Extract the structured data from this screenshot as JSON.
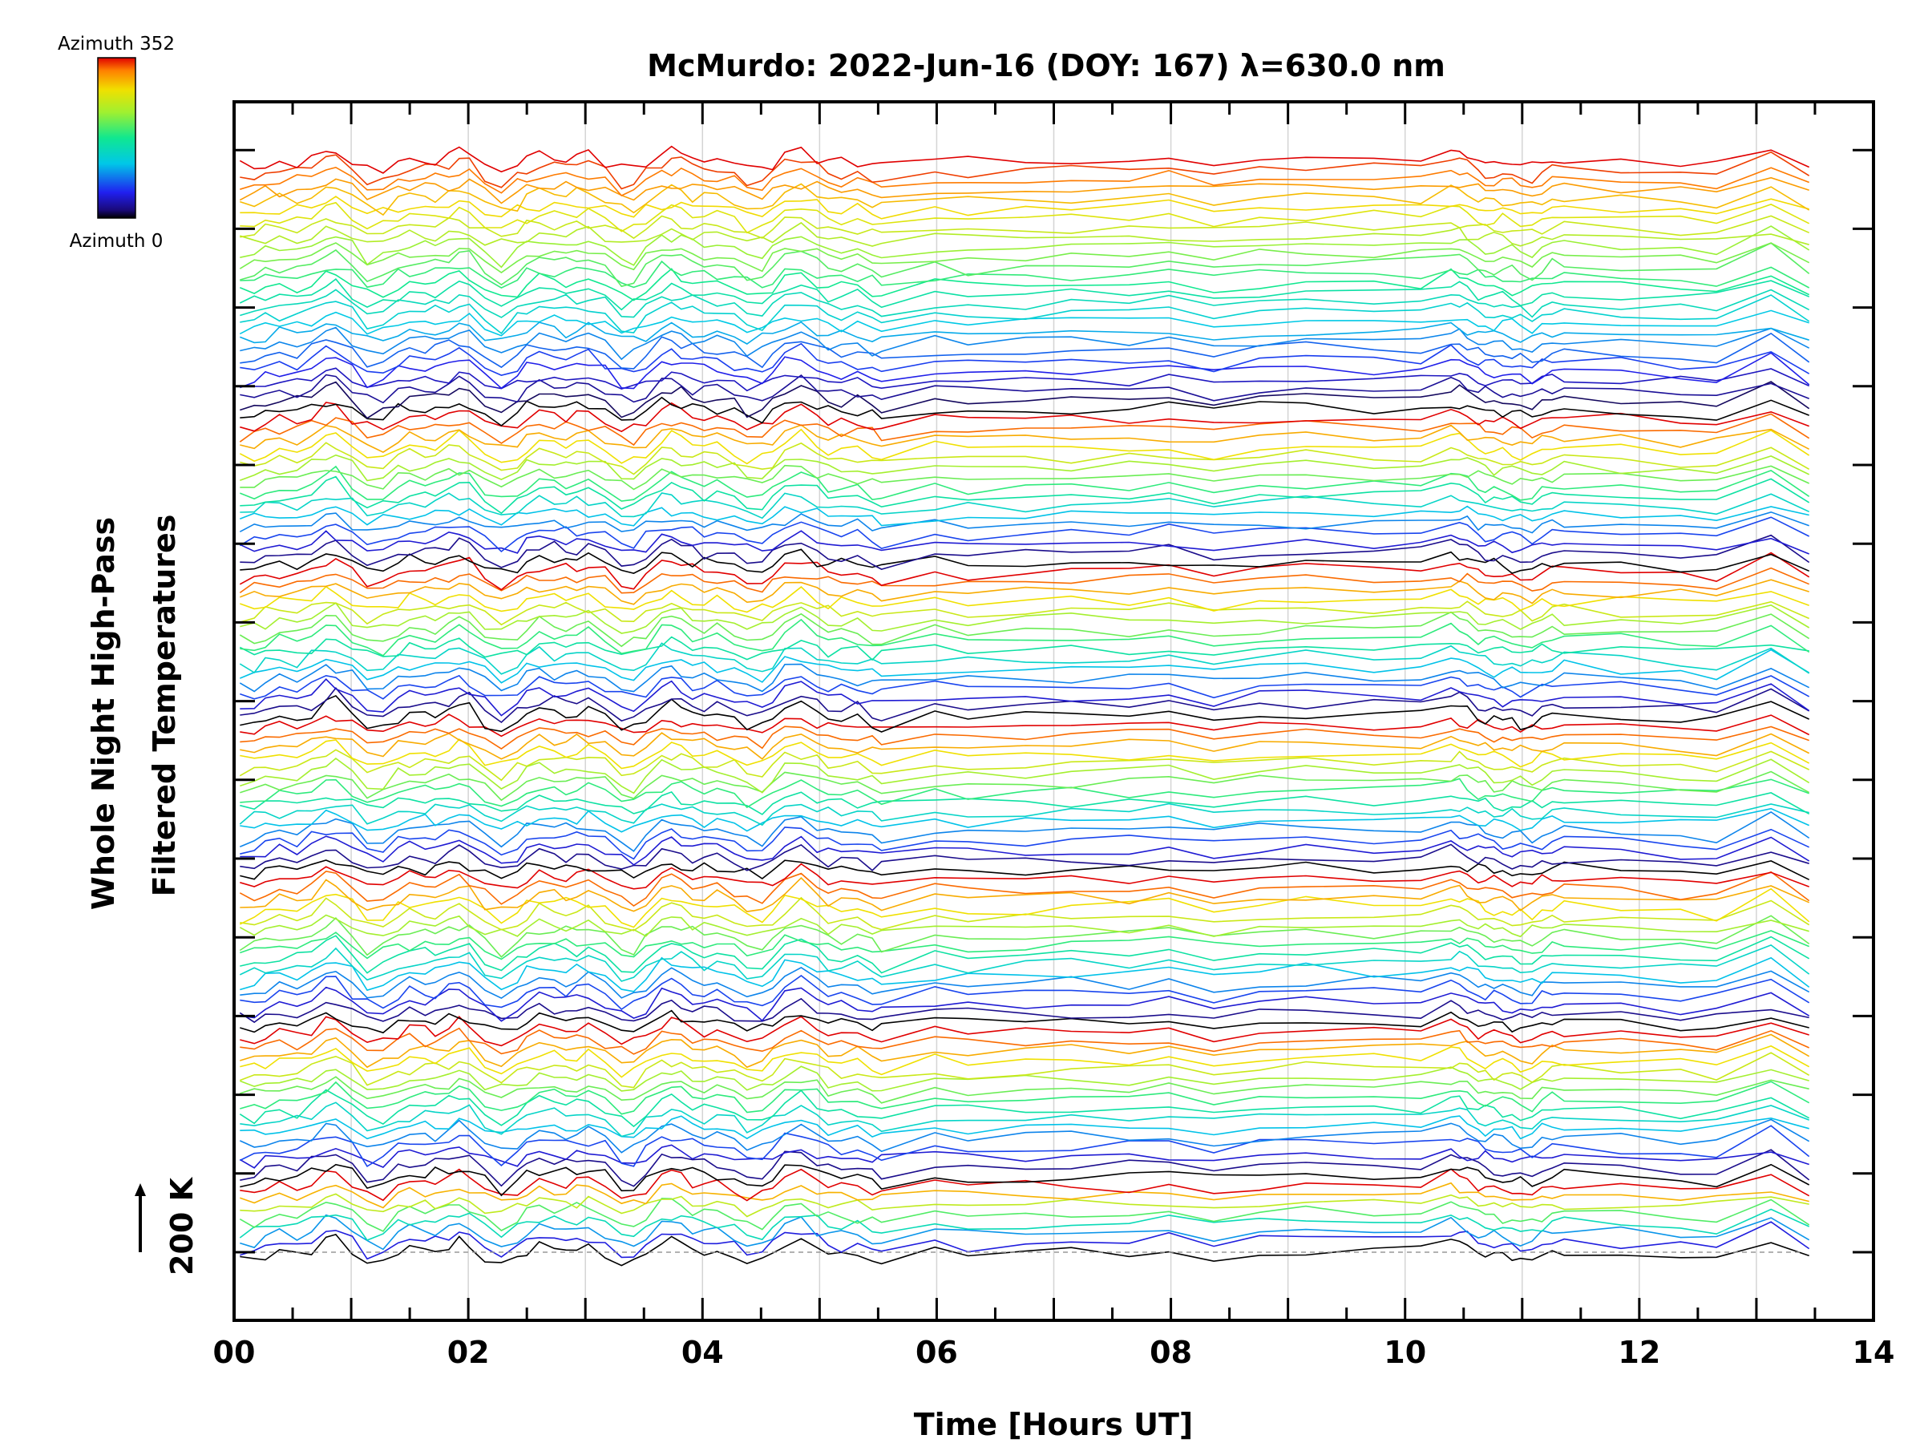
{
  "chart_data": {
    "type": "line",
    "title": "McMurdo: 2022-Jun-16 (DOY: 167) λ=630.0 nm",
    "xlabel": "Time [Hours UT]",
    "ylabel_line1": "Whole Night High-Pass",
    "ylabel_line2": "Filtered Temperatures",
    "xlim": [
      0,
      14
    ],
    "x_tick_labels": [
      "00",
      "02",
      "04",
      "06",
      "08",
      "10",
      "12",
      "14"
    ],
    "x_major_ticks": [
      0,
      2,
      4,
      6,
      8,
      10,
      12,
      14
    ],
    "x_gridlines": [
      1,
      2,
      3,
      4,
      5,
      6,
      7,
      8,
      9,
      10,
      11,
      12,
      13
    ],
    "scale_bar_label": "200 K",
    "colorbar": {
      "top_label": "Azimuth 352",
      "bottom_label": "Azimuth 0",
      "azimuth_min": 0,
      "azimuth_max": 352,
      "colormap": "rainbow"
    },
    "grid": "vertical",
    "n_zones": 115,
    "n_groups": 7,
    "zones_per_group": [
      8,
      16,
      16,
      16,
      16,
      16,
      27
    ],
    "x_range_hours": [
      0,
      13.45
    ]
  }
}
